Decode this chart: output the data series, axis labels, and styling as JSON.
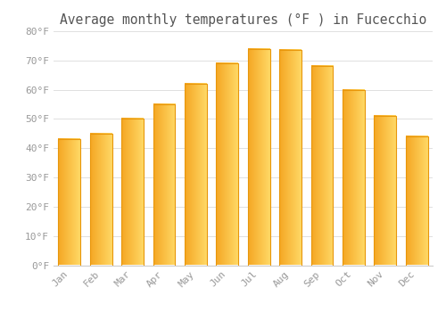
{
  "title": "Average monthly temperatures (°F ) in Fucecchio",
  "months": [
    "Jan",
    "Feb",
    "Mar",
    "Apr",
    "May",
    "Jun",
    "Jul",
    "Aug",
    "Sep",
    "Oct",
    "Nov",
    "Dec"
  ],
  "values": [
    43,
    45,
    50,
    55,
    62,
    69,
    74,
    73.5,
    68,
    60,
    51,
    44
  ],
  "bar_color_left": "#F5A623",
  "bar_color_right": "#FFD966",
  "background_color": "#FFFFFF",
  "grid_color": "#E0E0E0",
  "ylim": [
    0,
    80
  ],
  "yticks": [
    0,
    10,
    20,
    30,
    40,
    50,
    60,
    70,
    80
  ],
  "ytick_labels": [
    "0°F",
    "10°F",
    "20°F",
    "30°F",
    "40°F",
    "50°F",
    "60°F",
    "70°F",
    "80°F"
  ],
  "tick_color": "#999999",
  "title_fontsize": 10.5,
  "tick_fontsize": 8,
  "bar_edge_color": "#E8960A",
  "bar_width": 0.7
}
